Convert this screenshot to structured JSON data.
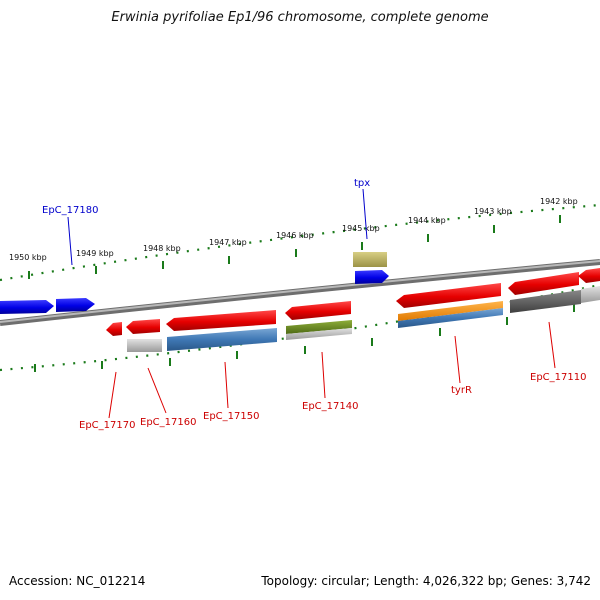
{
  "title": "Erwinia pyrifoliae Ep1/96 chromosome, complete genome",
  "footer": {
    "accession": "Accession: NC_012214",
    "genome_info": "Topology: circular; Length: 4,026,322 bp; Genes: 3,742"
  },
  "colors": {
    "forward_gene": "#0000ee",
    "reverse_gene": "#ee0000",
    "tick": "#1a7a1a",
    "backbone": "#888888"
  },
  "scale_labels": [
    "1950 kbp",
    "1949 kbp",
    "1948 kbp",
    "1947 kbp",
    "1946 kbp",
    "1945 kbp",
    "1944 kbp",
    "1943 kbp",
    "1942 kbp"
  ],
  "gene_labels": {
    "forward": [
      "EpC_17180",
      "tpx"
    ],
    "reverse": [
      "EpC_17170",
      "EpC_17160",
      "EpC_17150",
      "EpC_17140",
      "tyrR",
      "EpC_17110"
    ]
  }
}
